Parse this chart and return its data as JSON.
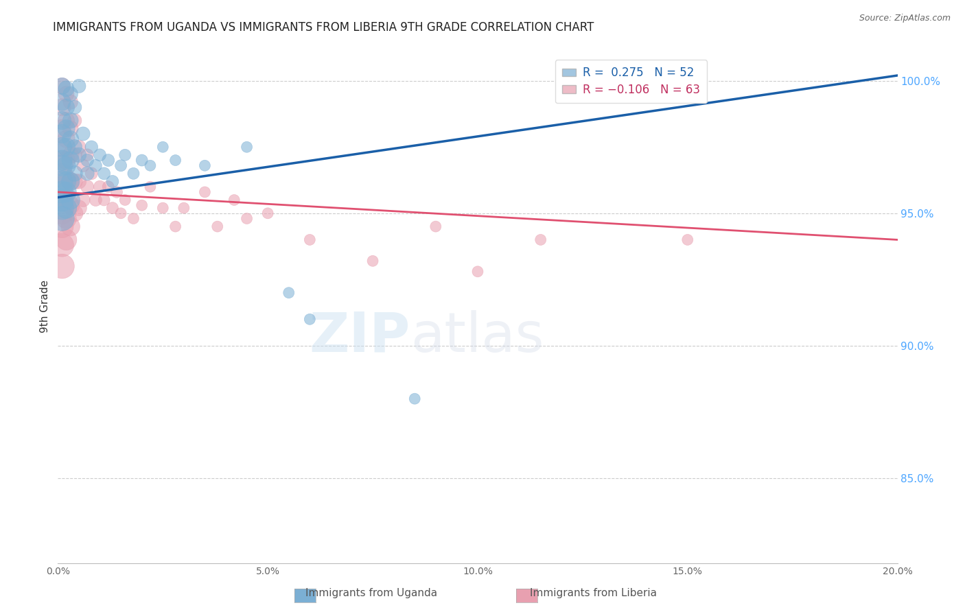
{
  "title": "IMMIGRANTS FROM UGANDA VS IMMIGRANTS FROM LIBERIA 9TH GRADE CORRELATION CHART",
  "source": "Source: ZipAtlas.com",
  "ylabel": "9th Grade",
  "ylabel_right_ticks": [
    "100.0%",
    "95.0%",
    "90.0%",
    "85.0%"
  ],
  "ylabel_right_vals": [
    1.0,
    0.95,
    0.9,
    0.85
  ],
  "watermark_zip": "ZIP",
  "watermark_atlas": "atlas",
  "uganda_color": "#7bafd4",
  "liberia_color": "#e8a0b0",
  "uganda_line_color": "#1a5fa8",
  "liberia_line_color": "#e05070",
  "xlim": [
    0.0,
    0.2
  ],
  "ylim": [
    0.818,
    1.012
  ],
  "xticks": [
    0.0,
    0.05,
    0.1,
    0.15,
    0.2
  ],
  "xticklabels": [
    "0.0%",
    "5.0%",
    "10.0%",
    "15.0%",
    "20.0%"
  ],
  "uganda_line_x": [
    0.0,
    0.2
  ],
  "uganda_line_y": [
    0.956,
    1.002
  ],
  "liberia_line_x": [
    0.0,
    0.2
  ],
  "liberia_line_y": [
    0.958,
    0.94
  ],
  "uganda_points": [
    [
      0.001,
      0.998
    ],
    [
      0.001,
      0.992
    ],
    [
      0.001,
      0.985
    ],
    [
      0.001,
      0.98
    ],
    [
      0.001,
      0.975
    ],
    [
      0.001,
      0.97
    ],
    [
      0.001,
      0.968
    ],
    [
      0.001,
      0.962
    ],
    [
      0.001,
      0.958
    ],
    [
      0.001,
      0.955
    ],
    [
      0.001,
      0.952
    ],
    [
      0.001,
      0.948
    ],
    [
      0.002,
      0.997
    ],
    [
      0.002,
      0.99
    ],
    [
      0.002,
      0.982
    ],
    [
      0.002,
      0.975
    ],
    [
      0.002,
      0.968
    ],
    [
      0.002,
      0.962
    ],
    [
      0.002,
      0.958
    ],
    [
      0.002,
      0.952
    ],
    [
      0.003,
      0.995
    ],
    [
      0.003,
      0.985
    ],
    [
      0.003,
      0.978
    ],
    [
      0.003,
      0.97
    ],
    [
      0.003,
      0.962
    ],
    [
      0.003,
      0.955
    ],
    [
      0.004,
      0.99
    ],
    [
      0.004,
      0.975
    ],
    [
      0.004,
      0.965
    ],
    [
      0.005,
      0.998
    ],
    [
      0.005,
      0.972
    ],
    [
      0.006,
      0.98
    ],
    [
      0.007,
      0.97
    ],
    [
      0.007,
      0.965
    ],
    [
      0.008,
      0.975
    ],
    [
      0.009,
      0.968
    ],
    [
      0.01,
      0.972
    ],
    [
      0.011,
      0.965
    ],
    [
      0.012,
      0.97
    ],
    [
      0.013,
      0.962
    ],
    [
      0.015,
      0.968
    ],
    [
      0.016,
      0.972
    ],
    [
      0.018,
      0.965
    ],
    [
      0.02,
      0.97
    ],
    [
      0.022,
      0.968
    ],
    [
      0.025,
      0.975
    ],
    [
      0.028,
      0.97
    ],
    [
      0.035,
      0.968
    ],
    [
      0.045,
      0.975
    ],
    [
      0.055,
      0.92
    ],
    [
      0.06,
      0.91
    ],
    [
      0.085,
      0.88
    ]
  ],
  "uganda_sizes": [
    50,
    55,
    60,
    65,
    70,
    75,
    80,
    85,
    90,
    95,
    100,
    110,
    45,
    50,
    55,
    60,
    65,
    70,
    75,
    80,
    40,
    45,
    50,
    55,
    60,
    65,
    35,
    40,
    45,
    35,
    40,
    35,
    30,
    35,
    30,
    28,
    28,
    28,
    28,
    28,
    25,
    25,
    25,
    25,
    22,
    22,
    22,
    22,
    22,
    22,
    22,
    22
  ],
  "liberia_points": [
    [
      0.001,
      0.998
    ],
    [
      0.001,
      0.99
    ],
    [
      0.001,
      0.982
    ],
    [
      0.001,
      0.975
    ],
    [
      0.001,
      0.97
    ],
    [
      0.001,
      0.965
    ],
    [
      0.001,
      0.96
    ],
    [
      0.001,
      0.955
    ],
    [
      0.001,
      0.95
    ],
    [
      0.001,
      0.945
    ],
    [
      0.001,
      0.938
    ],
    [
      0.001,
      0.93
    ],
    [
      0.002,
      0.995
    ],
    [
      0.002,
      0.985
    ],
    [
      0.002,
      0.978
    ],
    [
      0.002,
      0.97
    ],
    [
      0.002,
      0.963
    ],
    [
      0.002,
      0.955
    ],
    [
      0.002,
      0.948
    ],
    [
      0.002,
      0.94
    ],
    [
      0.003,
      0.992
    ],
    [
      0.003,
      0.982
    ],
    [
      0.003,
      0.972
    ],
    [
      0.003,
      0.962
    ],
    [
      0.003,
      0.953
    ],
    [
      0.003,
      0.945
    ],
    [
      0.004,
      0.985
    ],
    [
      0.004,
      0.972
    ],
    [
      0.004,
      0.962
    ],
    [
      0.004,
      0.95
    ],
    [
      0.005,
      0.975
    ],
    [
      0.005,
      0.962
    ],
    [
      0.005,
      0.952
    ],
    [
      0.006,
      0.968
    ],
    [
      0.006,
      0.955
    ],
    [
      0.007,
      0.972
    ],
    [
      0.007,
      0.96
    ],
    [
      0.008,
      0.965
    ],
    [
      0.009,
      0.955
    ],
    [
      0.01,
      0.96
    ],
    [
      0.011,
      0.955
    ],
    [
      0.012,
      0.96
    ],
    [
      0.013,
      0.952
    ],
    [
      0.014,
      0.958
    ],
    [
      0.015,
      0.95
    ],
    [
      0.016,
      0.955
    ],
    [
      0.018,
      0.948
    ],
    [
      0.02,
      0.953
    ],
    [
      0.022,
      0.96
    ],
    [
      0.025,
      0.952
    ],
    [
      0.028,
      0.945
    ],
    [
      0.03,
      0.952
    ],
    [
      0.035,
      0.958
    ],
    [
      0.038,
      0.945
    ],
    [
      0.042,
      0.955
    ],
    [
      0.045,
      0.948
    ],
    [
      0.05,
      0.95
    ],
    [
      0.06,
      0.94
    ],
    [
      0.075,
      0.932
    ],
    [
      0.09,
      0.945
    ],
    [
      0.1,
      0.928
    ],
    [
      0.115,
      0.94
    ],
    [
      0.15,
      0.94
    ]
  ],
  "liberia_sizes": [
    50,
    55,
    60,
    65,
    70,
    75,
    80,
    85,
    90,
    95,
    100,
    110,
    45,
    50,
    55,
    60,
    65,
    70,
    75,
    80,
    40,
    45,
    50,
    55,
    60,
    65,
    35,
    40,
    45,
    50,
    35,
    40,
    45,
    30,
    35,
    28,
    32,
    28,
    28,
    28,
    25,
    25,
    25,
    25,
    22,
    22,
    22,
    22,
    22,
    22,
    22,
    22,
    22,
    22,
    22,
    22,
    22,
    22,
    22,
    22,
    22,
    22,
    22
  ],
  "legend_uganda_text": "R =  0.275   N = 52",
  "legend_liberia_text": "R = −0.106   N = 63"
}
